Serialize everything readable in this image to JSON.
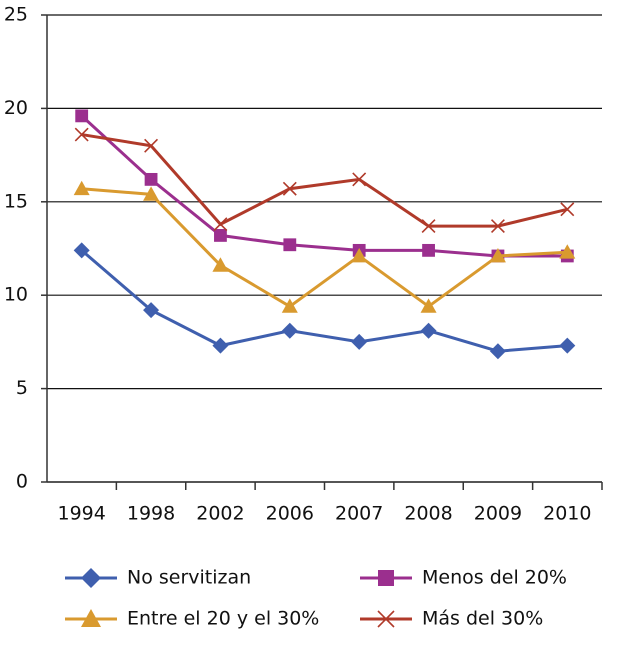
{
  "chart_data": {
    "type": "line",
    "categories": [
      "1994",
      "1998",
      "2002",
      "2006",
      "2007",
      "2008",
      "2009",
      "2010"
    ],
    "series": [
      {
        "name": "No servitizan",
        "color": "#3f5fae",
        "marker": "diamond",
        "values": [
          12.4,
          9.2,
          7.3,
          8.1,
          7.5,
          8.1,
          7.0,
          7.3
        ]
      },
      {
        "name": "Menos del 20%",
        "color": "#9b2f8e",
        "marker": "square",
        "values": [
          19.6,
          16.2,
          13.2,
          12.7,
          12.4,
          12.4,
          12.1,
          12.1
        ]
      },
      {
        "name": "Entre el 20 y el 30%",
        "color": "#d99a2f",
        "marker": "triangle",
        "values": [
          15.7,
          15.4,
          11.6,
          9.4,
          12.1,
          9.4,
          12.1,
          12.3
        ]
      },
      {
        "name": "Más del 30%",
        "color": "#b03a2a",
        "marker": "x",
        "values": [
          18.6,
          18.0,
          13.8,
          15.7,
          16.2,
          13.7,
          13.7,
          14.6
        ]
      }
    ],
    "ylim": [
      0,
      25
    ],
    "yticks": [
      0,
      5,
      10,
      15,
      20,
      25
    ],
    "grid": true
  }
}
